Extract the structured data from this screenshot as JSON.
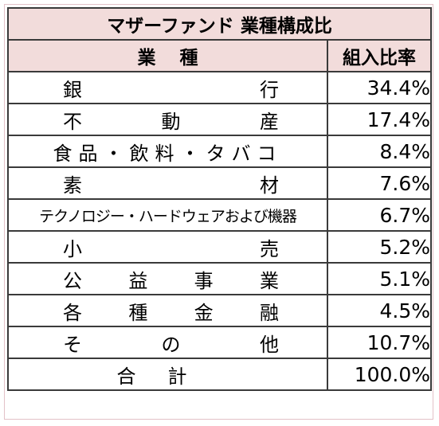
{
  "table": {
    "title": "マザーファンド 業種構成比",
    "header": {
      "industry": "業種",
      "ratio": "組入比率"
    },
    "rows": [
      {
        "industry": [
          "銀",
          "行"
        ],
        "ratio": "34.4%"
      },
      {
        "industry": [
          "不",
          "動",
          "産"
        ],
        "ratio": "17.4%"
      },
      {
        "industry_text": "食品・飲料・タバコ",
        "ratio": "8.4%"
      },
      {
        "industry": [
          "素",
          "材"
        ],
        "ratio": "7.6%"
      },
      {
        "industry_text": "テクノロジー・ハードウェアおよび機器",
        "ratio": "6.7%"
      },
      {
        "industry": [
          "小",
          "売"
        ],
        "ratio": "5.2%"
      },
      {
        "industry": [
          "公",
          "益",
          "事",
          "業"
        ],
        "ratio": "5.1%"
      },
      {
        "industry": [
          "各",
          "種",
          "金",
          "融"
        ],
        "ratio": "4.5%"
      },
      {
        "industry": [
          "そ",
          "の",
          "他"
        ],
        "ratio": "10.7%"
      }
    ],
    "total": {
      "label": "合計",
      "ratio": "100.0%"
    }
  },
  "colors": {
    "header_background": "#f2dcdb",
    "border": "#3a3a3a"
  }
}
